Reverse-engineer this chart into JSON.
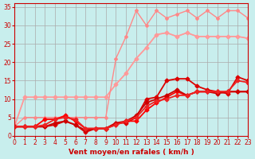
{
  "background_color": "#c8eeed",
  "grid_color": "#aaaaaa",
  "xlabel": "Vent moyen/en rafales ( km/h )",
  "xlabel_color": "#cc0000",
  "tick_color": "#cc0000",
  "xlim": [
    0,
    23
  ],
  "ylim": [
    0,
    36
  ],
  "xticks": [
    0,
    1,
    2,
    3,
    4,
    5,
    6,
    7,
    8,
    9,
    10,
    11,
    12,
    13,
    14,
    15,
    16,
    17,
    18,
    19,
    20,
    21,
    22,
    23
  ],
  "yticks": [
    0,
    5,
    10,
    15,
    20,
    25,
    30,
    35
  ],
  "lines": [
    {
      "x": [
        0,
        1,
        2,
        3,
        4,
        5,
        6,
        7,
        8,
        9,
        10,
        11,
        12,
        13,
        14,
        15,
        16,
        17,
        18,
        19,
        20,
        21,
        22,
        23
      ],
      "y": [
        2.5,
        10.5,
        10.5,
        10.5,
        10.5,
        10.5,
        10.5,
        10.5,
        10.5,
        10.5,
        14,
        17,
        21,
        24,
        27.5,
        28,
        27,
        28,
        27,
        27,
        27,
        27,
        27,
        26.5
      ],
      "color": "#ffaaaa",
      "linewidth": 1.0,
      "marker": null,
      "markersize": 0
    },
    {
      "x": [
        0,
        1,
        2,
        3,
        4,
        5,
        6,
        7,
        8,
        9,
        10,
        11,
        12,
        13,
        14,
        15,
        16,
        17,
        18,
        19,
        20,
        21,
        22,
        23
      ],
      "y": [
        2.5,
        10.5,
        10.5,
        10.5,
        10.5,
        10.5,
        10.5,
        10.5,
        10.5,
        10.5,
        14,
        17,
        21,
        24,
        27.5,
        28,
        27,
        28,
        27,
        27,
        27,
        27,
        27,
        26.5
      ],
      "color": "#ff9999",
      "linewidth": 1.2,
      "marker": "D",
      "markersize": 2.5
    },
    {
      "x": [
        0,
        1,
        2,
        3,
        4,
        5,
        6,
        7,
        8,
        9,
        10,
        11,
        12,
        13,
        14,
        15,
        16,
        17,
        18,
        19,
        20,
        21,
        22,
        23
      ],
      "y": [
        2.5,
        5,
        5,
        5,
        5,
        5,
        5,
        5,
        5,
        5,
        21,
        27,
        34,
        30,
        34,
        32,
        33,
        34,
        32,
        34,
        32,
        34,
        34,
        32
      ],
      "color": "#ff8888",
      "linewidth": 1.0,
      "marker": "D",
      "markersize": 2.0
    },
    {
      "x": [
        0,
        1,
        2,
        3,
        4,
        5,
        6,
        7,
        8,
        9,
        10,
        11,
        12,
        13,
        14,
        15,
        16,
        17,
        18,
        19,
        20,
        21,
        22,
        23
      ],
      "y": [
        2.5,
        2.5,
        2.5,
        2.5,
        3,
        4,
        3,
        1,
        2,
        2,
        3.5,
        3.5,
        5,
        10,
        10.5,
        15,
        15.5,
        15.5,
        13.5,
        12.5,
        12,
        11.5,
        16,
        15
      ],
      "color": "#dd0000",
      "linewidth": 1.3,
      "marker": "D",
      "markersize": 2.5
    },
    {
      "x": [
        0,
        1,
        2,
        3,
        4,
        5,
        6,
        7,
        8,
        9,
        10,
        11,
        12,
        13,
        14,
        15,
        16,
        17,
        18,
        19,
        20,
        21,
        22,
        23
      ],
      "y": [
        2.5,
        2.5,
        2.5,
        4.5,
        4.5,
        5.5,
        4,
        2,
        2,
        2,
        3,
        4,
        4,
        7,
        9,
        10.5,
        12,
        11,
        12,
        12,
        12,
        12,
        12,
        12
      ],
      "color": "#ff0000",
      "linewidth": 1.3,
      "marker": "D",
      "markersize": 2.5
    },
    {
      "x": [
        0,
        1,
        2,
        3,
        4,
        5,
        6,
        7,
        8,
        9,
        10,
        11,
        12,
        13,
        14,
        15,
        16,
        17,
        18,
        19,
        20,
        21,
        22,
        23
      ],
      "y": [
        2.5,
        2.5,
        2.5,
        2.5,
        3.5,
        4,
        3,
        1.5,
        2,
        2,
        3.5,
        4,
        5.5,
        9,
        10,
        11,
        12.5,
        11,
        12,
        12,
        11.5,
        12,
        12,
        12
      ],
      "color": "#cc0000",
      "linewidth": 1.3,
      "marker": "D",
      "markersize": 2.5
    },
    {
      "x": [
        0,
        1,
        2,
        3,
        4,
        5,
        6,
        7,
        8,
        9,
        10,
        11,
        12,
        13,
        14,
        15,
        16,
        17,
        18,
        19,
        20,
        21,
        22,
        23
      ],
      "y": [
        2.5,
        2.5,
        2.5,
        3,
        4.5,
        5,
        4.5,
        2,
        2,
        2,
        3,
        4,
        5,
        8,
        9.5,
        10,
        11,
        11,
        12,
        12,
        12,
        12,
        15,
        14.5
      ],
      "color": "#ee2222",
      "linewidth": 1.3,
      "marker": "D",
      "markersize": 2.5
    }
  ]
}
